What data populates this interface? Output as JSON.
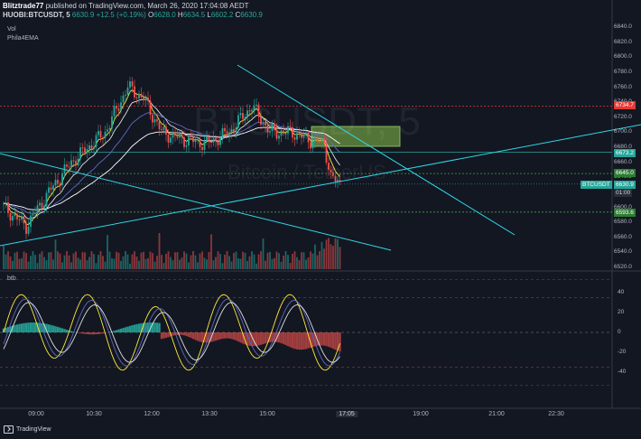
{
  "header": {
    "publisher": "Blitztrade77",
    "published_text": "published on TradingView.com, March 26, 2020 17:04:08 AEDT",
    "symbol": "HUOBI:BTCUSDT, 5",
    "last": "6630.9",
    "change": "+12.5 (+0.19%)",
    "o": "6628.0",
    "h": "6634.5",
    "l": "6602.2",
    "c": "6630.9"
  },
  "indicators": {
    "vol_label": "Vol",
    "ema_label": "Phila4EMA",
    "osc_label": "btb"
  },
  "watermark": {
    "symbol": "BTCUSDT, 5",
    "name": "Bitcoin / TetherUS"
  },
  "price_axis": [
    "6840.0",
    "6820.0",
    "6800.0",
    "6780.0",
    "6760.0",
    "6740.0",
    "6720.0",
    "6700.0",
    "6680.0",
    "6660.0",
    "6640.0",
    "6620.0",
    "6600.0",
    "6580.0",
    "6560.0",
    "6540.0",
    "6520.0"
  ],
  "price_tags": {
    "red_line": "6734.7",
    "teal_line": "6673.2",
    "green_upper": "6645.0",
    "current": "6630.9",
    "countdown": "01:00",
    "green_lower": "6593.6",
    "symbol_tag": "BTCUSDT"
  },
  "osc_axis": [
    "40",
    "20",
    "0",
    "-20",
    "-40"
  ],
  "time_axis": [
    "09:00",
    "10:30",
    "12:00",
    "13:30",
    "15:00",
    "17:05",
    "19:00",
    "21:00",
    "22:30"
  ],
  "footer": {
    "brand": "TradingView"
  },
  "colors": {
    "bg": "#131722",
    "up": "#26a69a",
    "down": "#ef5350",
    "trendline": "#2fd6e6",
    "red_line": "#e53935",
    "green_line": "#43a047"
  }
}
